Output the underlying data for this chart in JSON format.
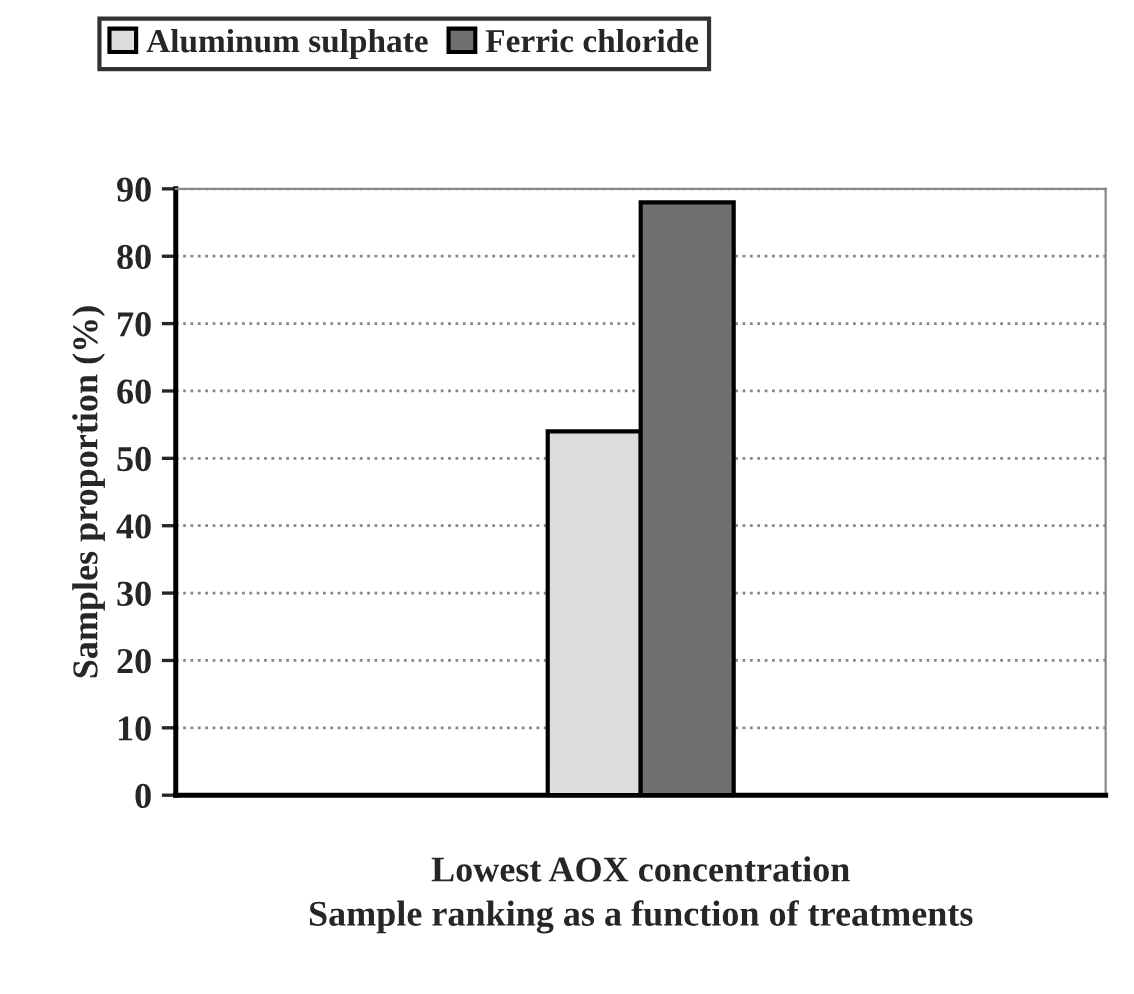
{
  "chart_data": {
    "type": "bar",
    "xlabel": "Sample ranking as a function of treatments",
    "ylabel": "Samples proportion (%)",
    "categories": [
      null,
      "Lowest AOX concentration",
      null
    ],
    "series": [
      {
        "name": "Aluminum sulphate",
        "color": "#dcdcdc",
        "values": [
          null,
          54,
          null
        ]
      },
      {
        "name": "Ferric chloride",
        "color": "#707070",
        "values": [
          null,
          88,
          null
        ]
      }
    ],
    "ylim": [
      0,
      90
    ],
    "yticks": [
      0,
      10,
      20,
      30,
      40,
      50,
      60,
      70,
      80,
      90
    ],
    "grid": "y",
    "legend": "top left"
  }
}
